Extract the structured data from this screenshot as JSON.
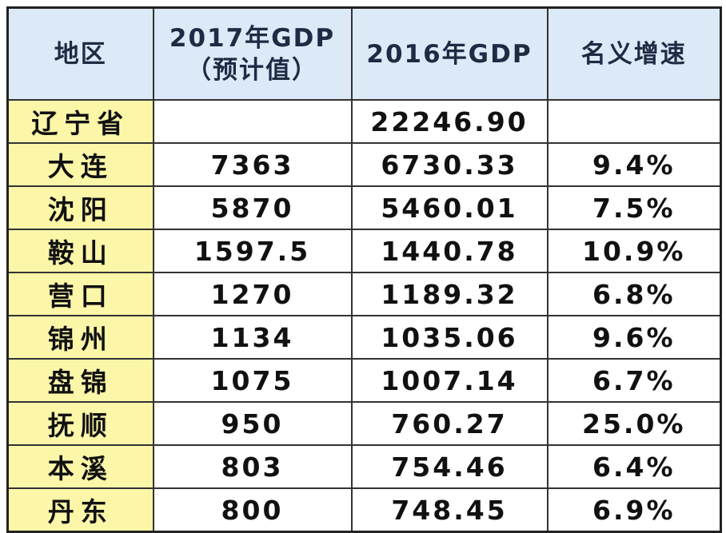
{
  "table": {
    "headers": [
      "地区",
      [
        "2017年GDP",
        "（预计值）"
      ],
      "2016年GDP",
      "名义增速"
    ],
    "rows": [
      [
        "辽宁省",
        null,
        "22246.90",
        null
      ],
      [
        "大连",
        "7363",
        "6730.33",
        "9.4%"
      ],
      [
        "沈阳",
        "5870",
        "5460.01",
        "7.5%"
      ],
      [
        "鞍山",
        "1597.5",
        "1440.78",
        "10.9%"
      ],
      [
        "营口",
        "1270",
        "1189.32",
        "6.8%"
      ],
      [
        "锦州",
        "1134",
        "1035.06",
        "9.6%"
      ],
      [
        "盘锦",
        "1075",
        "1007.14",
        "6.7%"
      ],
      [
        "抚顺",
        "950",
        "760.27",
        "25.0%"
      ],
      [
        "本溪",
        "803",
        "754.46",
        "6.4%"
      ],
      [
        "丹东",
        "800",
        "748.45",
        "6.9%"
      ]
    ]
  }
}
